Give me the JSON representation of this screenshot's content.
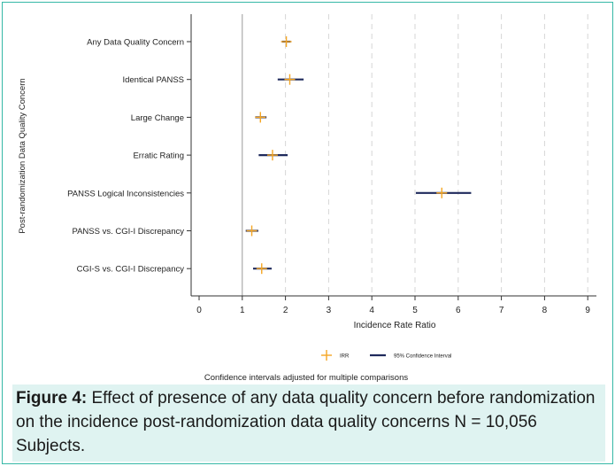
{
  "chart_data": {
    "type": "forest",
    "xlabel": "Incidence Rate Ratio",
    "ylabel": "Post-randomization Data Quality Concern",
    "xlim": [
      0,
      9
    ],
    "xticks": [
      0,
      1,
      2,
      3,
      4,
      5,
      6,
      7,
      8,
      9
    ],
    "reference_line": 1,
    "grid": "vertical dashed",
    "categories": [
      "Any Data Quality Concern",
      "Identical PANSS",
      "Large Change",
      "Erratic Rating",
      "PANSS Logical Inconsistencies",
      "PANSS vs. CGI-I Discrepancy",
      "CGI-S vs. CGI-I Discrepancy"
    ],
    "series": [
      {
        "name": "IRR",
        "color": "#f5a623",
        "values": [
          2.02,
          2.1,
          1.42,
          1.7,
          5.62,
          1.22,
          1.45
        ]
      },
      {
        "name": "95% Confidence Interval",
        "color": "#1f2a5c",
        "lower": [
          1.92,
          1.82,
          1.3,
          1.38,
          5.02,
          1.08,
          1.25
        ],
        "upper": [
          2.12,
          2.42,
          1.56,
          2.05,
          6.3,
          1.37,
          1.68
        ]
      }
    ],
    "legend_position": "bottom",
    "note": "Confidence intervals adjusted for multiple comparisons"
  },
  "caption": {
    "label": "Figure 4:",
    "text": " Effect of presence of any data quality concern before randomization on the incidence post-randomization data quality concerns N = 10,056 Subjects."
  }
}
